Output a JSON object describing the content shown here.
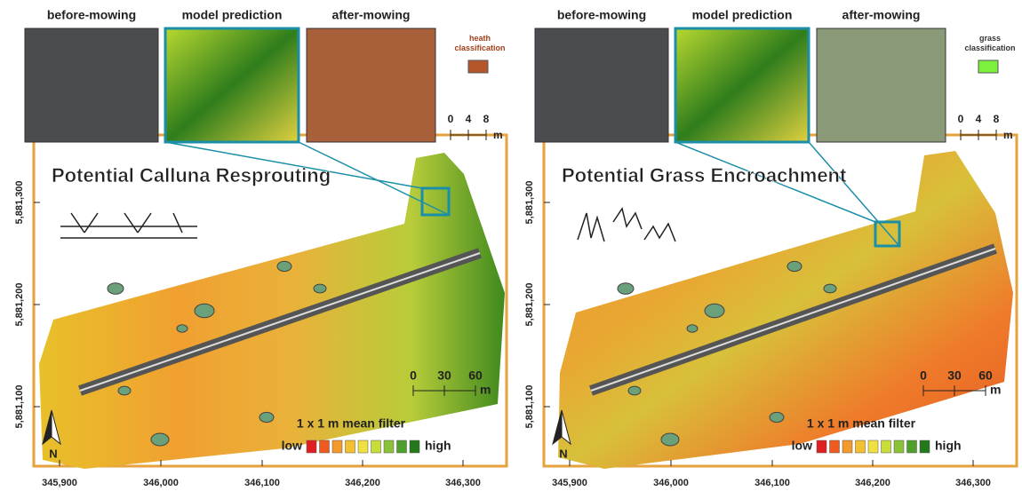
{
  "panels": [
    {
      "thumbnails": [
        "before-mowing",
        "model prediction",
        "after-mowing"
      ],
      "classification": "heath classification",
      "inset_scale": [
        "0",
        "4",
        "8",
        "m"
      ],
      "title": "Potential Calluna Resprouting",
      "y_labels": [
        "5,881,300",
        "5,881,200",
        "5,881,100"
      ],
      "x_labels": [
        "345,900",
        "346,000",
        "346,100",
        "346,200",
        "346,300"
      ],
      "scale": [
        "0",
        "30",
        "60",
        "m"
      ],
      "legend_title": "1 x 1 m mean filter",
      "legend_low": "low",
      "legend_high": "high",
      "north": "N"
    },
    {
      "thumbnails": [
        "before-mowing",
        "model prediction",
        "after-mowing"
      ],
      "classification": "grass classification",
      "inset_scale": [
        "0",
        "4",
        "8",
        "m"
      ],
      "title": "Potential Grass Encroachment",
      "y_labels": [
        "5,881,300",
        "5,881,200",
        "5,881,100"
      ],
      "x_labels": [
        "345,900",
        "346,000",
        "346,100",
        "346,200",
        "346,300"
      ],
      "scale": [
        "0",
        "30",
        "60",
        "m"
      ],
      "legend_title": "1 x 1 m mean filter",
      "legend_low": "low",
      "legend_high": "high",
      "north": "N"
    }
  ]
}
